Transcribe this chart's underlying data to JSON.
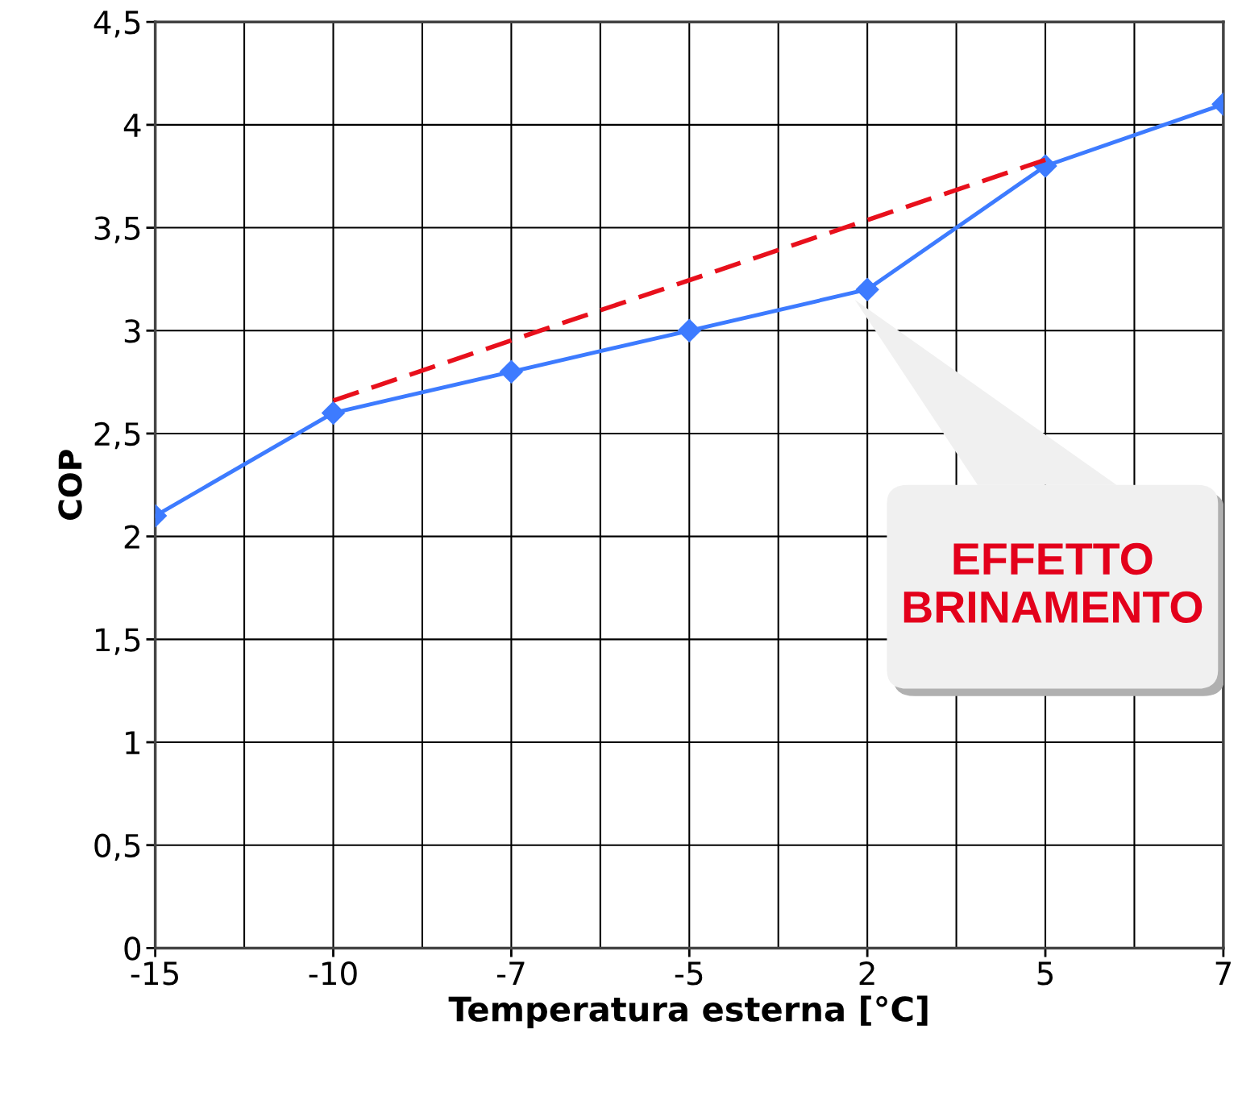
{
  "chart_data": {
    "type": "line",
    "xlabel": "Temperatura esterna [°C]",
    "ylabel": "COP",
    "categories": [
      "-15",
      "-10",
      "-7",
      "-5",
      "2",
      "5",
      "7"
    ],
    "series": [
      {
        "color": "#3d7bff",
        "values": [
          2.1,
          2.6,
          2.8,
          3.0,
          3.2,
          3.8,
          4.1
        ],
        "marker": "diamond",
        "line_style": "solid"
      },
      {
        "color": "#e8101c",
        "values": [
          null,
          2.66,
          null,
          null,
          null,
          3.83,
          null
        ],
        "marker": "none",
        "line_style": "dashed"
      }
    ],
    "ylim": [
      0,
      4.5
    ],
    "yticks": [
      0,
      {
        "value": 0.5,
        "label": "0,5"
      },
      1,
      {
        "value": 1.5,
        "label": "1,5"
      },
      2,
      {
        "value": 2.5,
        "label": "2,5"
      },
      3,
      {
        "value": 3.5,
        "label": "3,5"
      },
      4,
      {
        "value": 4.5,
        "label": "4,5"
      }
    ],
    "grid": true,
    "legend": false,
    "annotations": [
      "EFFETTO\nBRINAMENTO"
    ]
  }
}
